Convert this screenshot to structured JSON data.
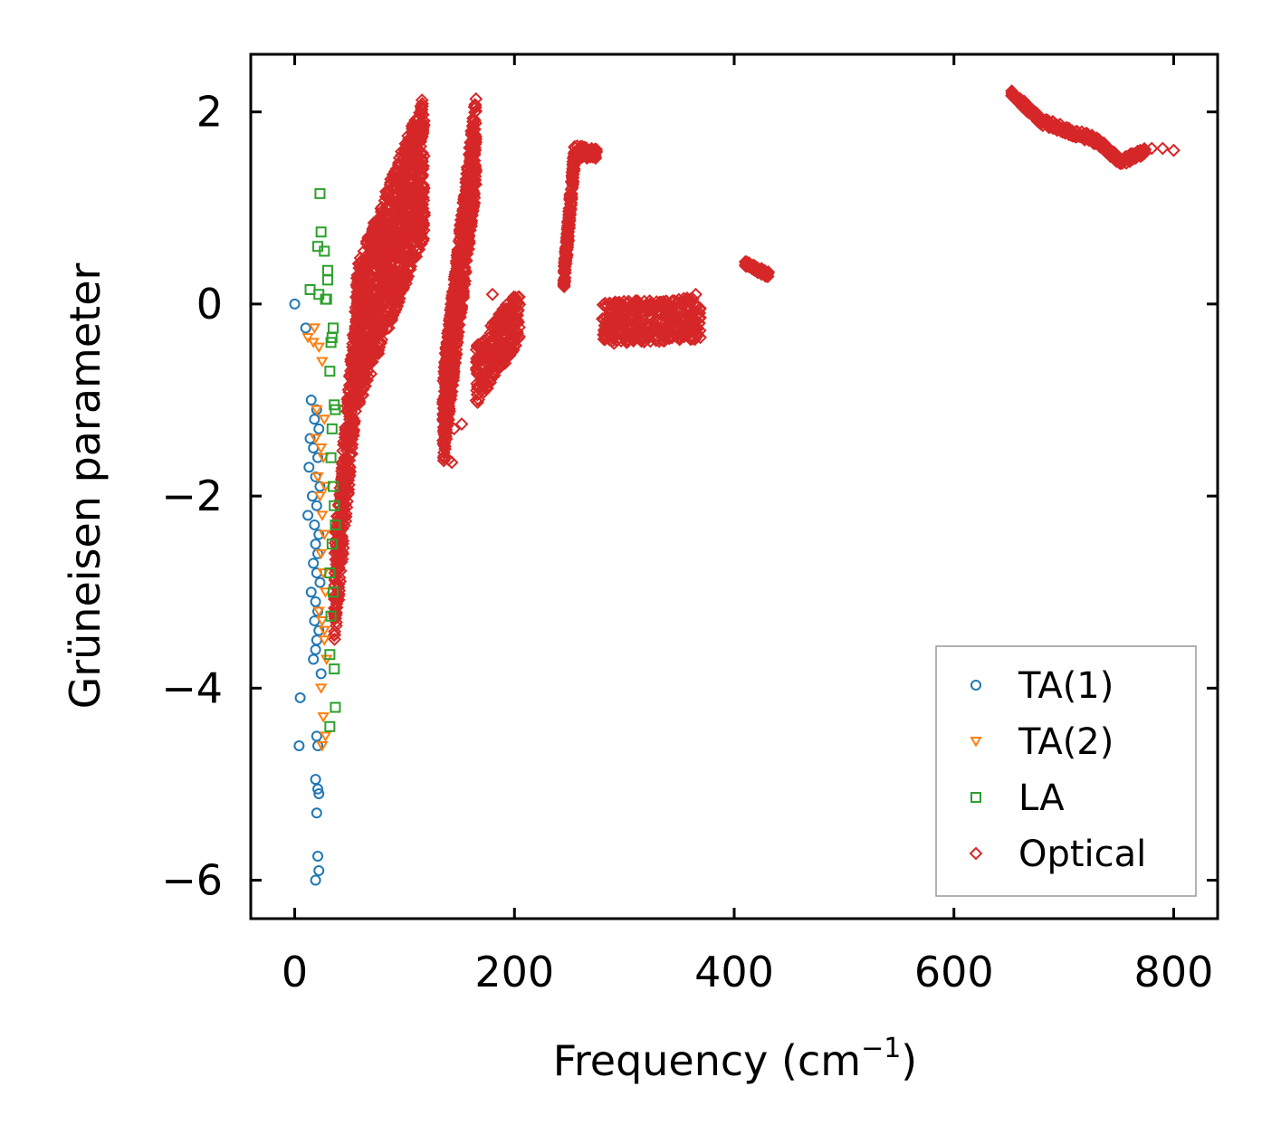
{
  "chart_data": {
    "type": "scatter",
    "title": "",
    "xlabel": "Frequency (cm",
    "xlabel_sup": "−1",
    "xlabel_end": ")",
    "ylabel": "Grüneisen parameter",
    "xlim": [
      -40,
      840
    ],
    "ylim": [
      -6.4,
      2.6
    ],
    "xticks": [
      0,
      200,
      400,
      600,
      800
    ],
    "yticks": [
      2,
      0,
      -2,
      -4,
      -6
    ],
    "xtick_labels": [
      "0",
      "200",
      "400",
      "600",
      "800"
    ],
    "ytick_labels": [
      "2",
      "0",
      "−2",
      "−4",
      "−6"
    ],
    "legend_position": "bottom-right",
    "series": [
      {
        "name": "TA(1)",
        "marker": "circle",
        "color": "#1f77b4",
        "x": [
          0,
          10,
          15,
          20,
          18,
          22,
          14,
          17,
          21,
          13,
          19,
          23,
          16,
          20,
          12,
          18,
          22,
          19,
          21,
          17,
          20,
          23,
          15,
          19,
          21,
          18,
          22,
          20,
          19,
          17,
          24,
          5,
          4,
          20,
          21,
          19,
          21,
          22,
          20,
          21,
          22,
          19
        ],
        "y": [
          0,
          -0.25,
          -1.0,
          -1.1,
          -1.2,
          -1.3,
          -1.4,
          -1.5,
          -1.6,
          -1.7,
          -1.8,
          -1.9,
          -2.0,
          -2.1,
          -2.2,
          -2.3,
          -2.4,
          -2.5,
          -2.6,
          -2.7,
          -2.8,
          -2.9,
          -3.0,
          -3.1,
          -3.2,
          -3.3,
          -3.4,
          -3.5,
          -3.6,
          -3.7,
          -3.85,
          -4.1,
          -4.6,
          -4.5,
          -4.6,
          -4.95,
          -5.05,
          -5.1,
          -5.3,
          -5.75,
          -5.9,
          -6.0
        ]
      },
      {
        "name": "TA(2)",
        "marker": "triangle-down",
        "color": "#ff7f0e",
        "x": [
          18,
          12,
          17,
          22,
          25,
          20,
          27,
          19,
          24,
          26,
          21,
          28,
          23,
          25,
          27,
          24,
          26,
          28,
          22,
          25,
          27,
          29,
          24,
          26,
          28,
          25,
          27
        ],
        "y": [
          -0.25,
          -0.35,
          -0.4,
          -0.45,
          -0.6,
          -1.1,
          -1.2,
          -1.4,
          -1.5,
          -1.6,
          -1.8,
          -1.9,
          -2.0,
          -2.2,
          -2.4,
          -2.6,
          -2.8,
          -3.0,
          -3.2,
          -3.3,
          -3.5,
          -3.7,
          -4.0,
          -4.3,
          -4.5,
          -4.6,
          -3.4
        ]
      },
      {
        "name": "LA",
        "marker": "square",
        "color": "#2ca02c",
        "x": [
          23,
          24,
          21,
          27,
          30,
          30,
          14,
          22,
          28,
          29,
          35,
          33,
          32,
          36,
          37,
          34,
          33,
          35,
          36,
          37,
          34,
          32,
          35,
          33,
          32,
          36,
          37,
          32,
          34
        ],
        "y": [
          1.15,
          0.75,
          0.6,
          0.55,
          0.35,
          0.25,
          0.15,
          0.1,
          0.05,
          0.05,
          -0.25,
          -0.4,
          -0.7,
          -1.05,
          -1.1,
          -1.3,
          -1.6,
          -1.9,
          -2.1,
          -2.3,
          -2.5,
          -2.8,
          -3.0,
          -3.25,
          -3.65,
          -3.8,
          -4.2,
          -4.4,
          -0.35
        ]
      },
      {
        "name": "Optical",
        "marker": "diamond",
        "color": "#d62728",
        "clouds": [
          {
            "x_start": 36,
            "x_end": 60,
            "y_start": -3.05,
            "y_end": 0.0,
            "spread_y": 0.55,
            "count": 420
          },
          {
            "x_start": 55,
            "x_end": 118,
            "y_start": -0.4,
            "y_end": 1.45,
            "spread_y": 0.75,
            "count": 1100
          },
          {
            "x_start": 135,
            "x_end": 165,
            "y_start": -1.2,
            "y_end": 1.7,
            "spread_y": 0.5,
            "count": 900
          },
          {
            "x_start": 165,
            "x_end": 205,
            "y_start": -0.75,
            "y_end": -0.1,
            "spread_y": 0.3,
            "count": 260
          },
          {
            "x_start": 245,
            "x_end": 255,
            "y_start": 0.25,
            "y_end": 1.6,
            "spread_y": 0.12,
            "count": 180
          },
          {
            "x_start": 255,
            "x_end": 275,
            "y_start": 1.6,
            "y_end": 1.55,
            "spread_y": 0.06,
            "count": 70
          },
          {
            "x_start": 280,
            "x_end": 370,
            "y_start": -0.2,
            "y_end": -0.15,
            "spread_y": 0.22,
            "count": 380
          },
          {
            "x_start": 410,
            "x_end": 432,
            "y_start": 0.42,
            "y_end": 0.3,
            "spread_y": 0.03,
            "count": 60
          },
          {
            "x_start": 652,
            "x_end": 680,
            "y_start": 2.2,
            "y_end": 1.9,
            "spread_y": 0.04,
            "count": 90
          },
          {
            "x_start": 680,
            "x_end": 730,
            "y_start": 1.9,
            "y_end": 1.7,
            "spread_y": 0.04,
            "count": 130
          },
          {
            "x_start": 730,
            "x_end": 752,
            "y_start": 1.7,
            "y_end": 1.48,
            "spread_y": 0.04,
            "count": 60
          },
          {
            "x_start": 752,
            "x_end": 775,
            "y_start": 1.48,
            "y_end": 1.6,
            "spread_y": 0.04,
            "count": 50
          }
        ],
        "x": [
          140,
          143,
          145,
          152,
          180,
          360,
          365,
          368,
          117,
          38,
          40,
          36,
          800,
          790,
          780
        ],
        "y": [
          -1.62,
          -1.65,
          -1.3,
          -1.25,
          0.1,
          0.05,
          0.1,
          -0.15,
          0.95,
          -2.9,
          -2.95,
          -3.45,
          1.6,
          1.62,
          1.62
        ]
      }
    ]
  }
}
